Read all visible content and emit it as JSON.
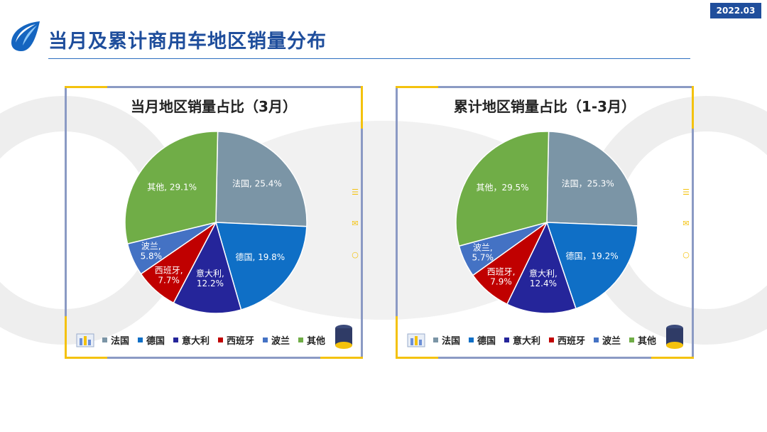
{
  "header": {
    "date": "2022.03",
    "title": "当月及累计商用车地区销量分布"
  },
  "colors": {
    "accent": "#1f4e9c",
    "frame": "#8b9ac4",
    "corner": "#f4c20d"
  },
  "legend": [
    {
      "name": "法国",
      "color": "#7b95a6"
    },
    {
      "name": "德国",
      "color": "#0f6fc6"
    },
    {
      "name": "意大利",
      "color": "#25259a"
    },
    {
      "name": "西班牙",
      "color": "#c00000"
    },
    {
      "name": "波兰",
      "color": "#4472c4"
    },
    {
      "name": "其他",
      "color": "#70ad47"
    }
  ],
  "chart_data": [
    {
      "type": "pie",
      "title": "当月地区销量占比（3月）",
      "categories": [
        "法国",
        "德国",
        "意大利",
        "西班牙",
        "波兰",
        "其他"
      ],
      "values": [
        25.4,
        19.8,
        12.2,
        7.7,
        5.8,
        29.1
      ],
      "labels": [
        "法国, 25.4%",
        "德国, 19.8%",
        "意大利,|12.2%",
        "西班牙,|7.7%",
        "波兰,|5.8%",
        "其他, 29.1%"
      ]
    },
    {
      "type": "pie",
      "title": "累计地区销量占比（1-3月）",
      "categories": [
        "法国",
        "德国",
        "意大利",
        "西班牙",
        "波兰",
        "其他"
      ],
      "values": [
        25.3,
        19.2,
        12.4,
        7.9,
        5.7,
        29.5
      ],
      "labels": [
        "法国，25.3%",
        "德国，19.2%",
        "意大利,|12.4%",
        "西班牙,|7.9%",
        "波兰,|5.7%",
        "其他，29.5%"
      ]
    }
  ]
}
